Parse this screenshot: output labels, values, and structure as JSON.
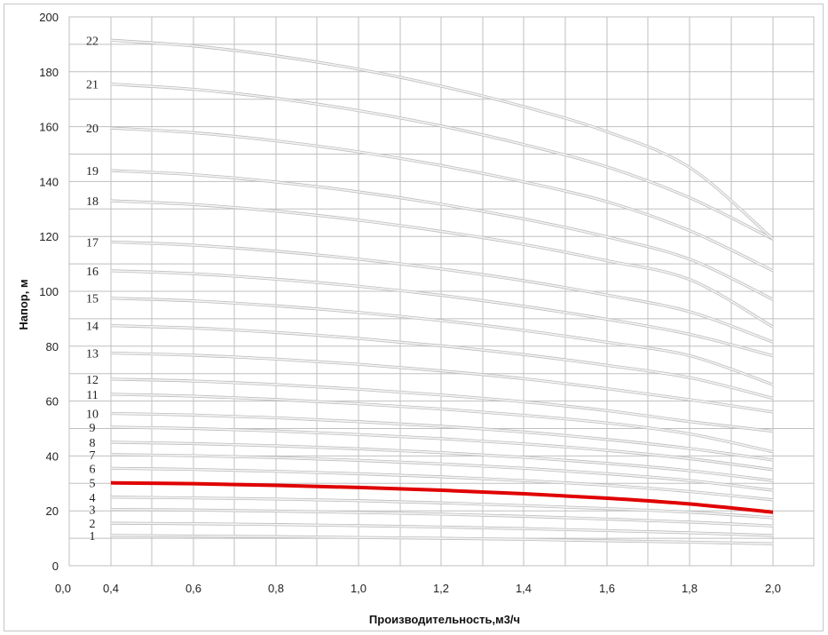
{
  "chart_data": {
    "type": "line",
    "title": "",
    "xlabel": "Производительность,м3/ч",
    "ylabel": "Напор, м",
    "xlim": [
      0.0,
      2.0
    ],
    "ylim": [
      0,
      200
    ],
    "x_ticks": [
      "0,0",
      "0,4",
      "0,6",
      "0,8",
      "1,0",
      "1,2",
      "1,4",
      "1,6",
      "1,8",
      "2,0"
    ],
    "y_ticks": [
      "0",
      "20",
      "40",
      "60",
      "80",
      "100",
      "120",
      "140",
      "160",
      "180",
      "200"
    ],
    "grid": true,
    "legend": "none",
    "colors": {
      "curve": "#d7d7d7",
      "highlight": "#e00000",
      "grid": "#bfbfbf"
    },
    "highlight_series": "5",
    "x": [
      0.4,
      0.6,
      0.8,
      1.0,
      1.2,
      1.4,
      1.6,
      1.8,
      2.0
    ],
    "series": [
      {
        "name": "1",
        "values": [
          11,
          10.8,
          10.6,
          10.3,
          10,
          9.6,
          9.1,
          8.6,
          8
        ]
      },
      {
        "name": "2",
        "values": [
          15.5,
          15.3,
          15,
          14.6,
          14.1,
          13.5,
          12.8,
          12,
          11
        ]
      },
      {
        "name": "3",
        "values": [
          20.5,
          20.3,
          19.9,
          19.4,
          18.8,
          18,
          17,
          15.9,
          14.5
        ]
      },
      {
        "name": "4",
        "values": [
          25,
          24.7,
          24.3,
          23.7,
          22.9,
          21.9,
          20.8,
          19.5,
          17.5
        ]
      },
      {
        "name": "5",
        "values": [
          30.2,
          29.9,
          29.3,
          28.5,
          27.5,
          26.2,
          24.6,
          22.5,
          19.5
        ]
      },
      {
        "name": "6",
        "values": [
          35.5,
          35.1,
          34.4,
          33.5,
          32.4,
          31,
          29.3,
          27,
          24
        ]
      },
      {
        "name": "7",
        "values": [
          40.5,
          40.1,
          39.4,
          38.4,
          37.1,
          35.5,
          33.5,
          31,
          27.5
        ]
      },
      {
        "name": "8",
        "values": [
          45,
          44.5,
          43.7,
          42.6,
          41.2,
          39.5,
          37.3,
          34.6,
          31
        ]
      },
      {
        "name": "9",
        "values": [
          50.5,
          50,
          49.1,
          47.8,
          46.3,
          44.4,
          42,
          39,
          35
        ]
      },
      {
        "name": "10",
        "values": [
          55.5,
          54.9,
          53.9,
          52.5,
          50.8,
          48.7,
          46,
          42.7,
          38.5
        ]
      },
      {
        "name": "11",
        "values": [
          62.5,
          61.8,
          60.6,
          59,
          57.1,
          54.8,
          52,
          48,
          41.5
        ]
      },
      {
        "name": "12",
        "values": [
          68,
          67.3,
          66,
          64.3,
          62.2,
          59.7,
          56.5,
          52.5,
          49
        ]
      },
      {
        "name": "13",
        "values": [
          77.5,
          76.7,
          75.3,
          73.4,
          71,
          68.1,
          64.5,
          60.5,
          56
        ]
      },
      {
        "name": "14",
        "values": [
          87.5,
          86.6,
          85,
          82.8,
          80.1,
          76.9,
          73,
          68.5,
          61
        ]
      },
      {
        "name": "15",
        "values": [
          97.5,
          96.5,
          94.7,
          92.3,
          89.3,
          85.7,
          81.4,
          76.5,
          66
        ]
      },
      {
        "name": "16",
        "values": [
          107.5,
          106.4,
          104.4,
          101.8,
          98.5,
          94.5,
          89.8,
          84.3,
          76.5
        ]
      },
      {
        "name": "17",
        "values": [
          118,
          116.8,
          114.6,
          111.7,
          108.1,
          103.8,
          98.6,
          92.5,
          81.5
        ]
      },
      {
        "name": "18",
        "values": [
          133,
          131.6,
          129.2,
          125.9,
          121.8,
          117,
          111.1,
          104.2,
          87
        ]
      },
      {
        "name": "19",
        "values": [
          144,
          142.5,
          139.8,
          136.2,
          131.7,
          126.3,
          119.8,
          111.6,
          97
        ]
      },
      {
        "name": "20",
        "values": [
          159.5,
          157.8,
          154.8,
          150.8,
          145.8,
          139.8,
          132.6,
          122,
          107.5
        ]
      },
      {
        "name": "21",
        "values": [
          175.5,
          173.6,
          170.3,
          165.8,
          160.2,
          153.4,
          145.3,
          134,
          119
        ]
      },
      {
        "name": "22",
        "values": [
          191.5,
          189.4,
          185.8,
          180.9,
          174.7,
          167.2,
          158.1,
          145,
          119
        ]
      }
    ]
  }
}
